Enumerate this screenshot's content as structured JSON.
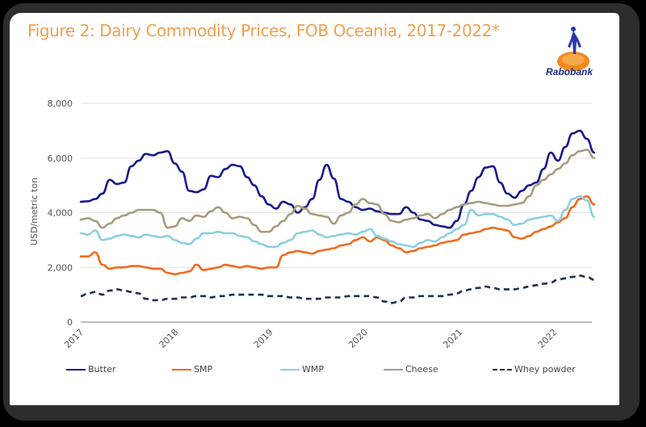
{
  "title": "Figure 2: Dairy Commodity Prices, FOB Oceania, 2017-2022*",
  "logo": {
    "icon": "rabobank-logo-icon",
    "text": "Rabobank"
  },
  "colors": {
    "title": "#f0a050",
    "Butter": "#1a1a8c",
    "SMP": "#f26b1d",
    "WMP": "#8ccfe0",
    "Cheese": "#a89c7e",
    "Whey powder": "#1f2f4f"
  },
  "chart_data": {
    "type": "line",
    "title": "Figure 2: Dairy Commodity Prices, FOB Oceania, 2017-2022*",
    "xlabel": "",
    "ylabel": "USD/metric ton",
    "ylim": [
      0,
      8000
    ],
    "xlim": [
      2017,
      2022.42
    ],
    "yticks": [
      0,
      2000,
      4000,
      6000,
      8000
    ],
    "ytick_labels": [
      "0",
      "2,000",
      "4,000",
      "6,000",
      "8,000"
    ],
    "xticks": [
      2017,
      2018,
      2019,
      2020,
      2021,
      2022
    ],
    "xtick_labels": [
      "2017",
      "2018",
      "2019",
      "2020",
      "2021",
      "2022"
    ],
    "grid": true,
    "legend": "bottom",
    "x_step": "monthly from 2017-01",
    "series": [
      {
        "name": "Butter",
        "style": "solid",
        "values": [
          4400,
          4420,
          4500,
          4700,
          5200,
          5050,
          5100,
          5700,
          5900,
          6150,
          6100,
          6200,
          6250,
          5800,
          5500,
          4800,
          4750,
          4850,
          5350,
          5300,
          5600,
          5750,
          5700,
          5300,
          5000,
          4600,
          4300,
          4150,
          4400,
          4300,
          4000,
          4200,
          4500,
          5200,
          5750,
          5250,
          4500,
          4400,
          4200,
          4100,
          4150,
          4050,
          4000,
          3950,
          3950,
          4200,
          4000,
          3750,
          3700,
          3550,
          3500,
          3450,
          3700,
          4300,
          4800,
          5300,
          5650,
          5700,
          5100,
          4700,
          4550,
          4800,
          5000,
          5100,
          5600,
          6200,
          5900,
          6400,
          6900,
          7000,
          6700,
          6200
        ]
      },
      {
        "name": "SMP",
        "style": "solid",
        "values": [
          2400,
          2400,
          2550,
          2100,
          1950,
          2000,
          2000,
          2050,
          2050,
          2000,
          1950,
          1950,
          1800,
          1750,
          1800,
          1850,
          2100,
          1900,
          1950,
          2000,
          2100,
          2050,
          2000,
          2050,
          2000,
          1950,
          2000,
          2000,
          2450,
          2550,
          2600,
          2550,
          2500,
          2600,
          2650,
          2700,
          2800,
          2850,
          3000,
          3100,
          2950,
          3100,
          3000,
          2800,
          2700,
          2550,
          2600,
          2700,
          2750,
          2800,
          2900,
          2950,
          3000,
          3200,
          3250,
          3300,
          3400,
          3450,
          3400,
          3350,
          3100,
          3050,
          3150,
          3300,
          3400,
          3500,
          3650,
          3800,
          4200,
          4500,
          4600,
          4300
        ]
      },
      {
        "name": "WMP",
        "style": "solid",
        "values": [
          3250,
          3200,
          3350,
          3000,
          3050,
          3150,
          3200,
          3150,
          3100,
          3200,
          3150,
          3100,
          3150,
          3000,
          2900,
          2850,
          3050,
          3250,
          3250,
          3300,
          3250,
          3250,
          3150,
          3100,
          2950,
          2850,
          2750,
          2750,
          2900,
          3000,
          3250,
          3300,
          3350,
          3200,
          3100,
          3150,
          3200,
          3250,
          3200,
          3300,
          3400,
          3150,
          3050,
          2950,
          2850,
          2800,
          2750,
          2900,
          3000,
          2950,
          3100,
          3250,
          3400,
          3550,
          4100,
          3900,
          3950,
          3950,
          3850,
          3750,
          3550,
          3600,
          3750,
          3800,
          3850,
          3900,
          3700,
          4100,
          4500,
          4600,
          4450,
          3850
        ]
      },
      {
        "name": "Cheese",
        "style": "solid",
        "values": [
          3750,
          3800,
          3700,
          3450,
          3600,
          3800,
          3900,
          4000,
          4100,
          4100,
          4100,
          4000,
          3450,
          3500,
          3800,
          3700,
          3900,
          3850,
          4050,
          4200,
          4000,
          3800,
          3850,
          3800,
          3550,
          3300,
          3300,
          3500,
          3700,
          3950,
          4250,
          4150,
          3950,
          3900,
          3850,
          3600,
          3900,
          4000,
          4300,
          4500,
          4350,
          4300,
          3950,
          3700,
          3650,
          3750,
          3800,
          3900,
          3950,
          3800,
          3950,
          4100,
          4200,
          4300,
          4350,
          4400,
          4350,
          4300,
          4250,
          4250,
          4300,
          4350,
          4600,
          5000,
          5200,
          5400,
          5600,
          5800,
          6100,
          6250,
          6300,
          6000
        ]
      },
      {
        "name": "Whey powder",
        "style": "dashed",
        "values": [
          950,
          1050,
          1100,
          1000,
          1150,
          1200,
          1150,
          1100,
          1050,
          850,
          800,
          800,
          850,
          850,
          900,
          900,
          950,
          950,
          900,
          950,
          950,
          1000,
          1000,
          1000,
          1000,
          1000,
          950,
          950,
          950,
          900,
          900,
          850,
          850,
          850,
          900,
          900,
          900,
          950,
          950,
          950,
          950,
          900,
          750,
          700,
          750,
          900,
          900,
          950,
          950,
          950,
          950,
          1000,
          1050,
          1150,
          1200,
          1250,
          1300,
          1250,
          1200,
          1200,
          1200,
          1250,
          1300,
          1350,
          1400,
          1450,
          1550,
          1600,
          1650,
          1700,
          1650,
          1550
        ]
      }
    ]
  }
}
